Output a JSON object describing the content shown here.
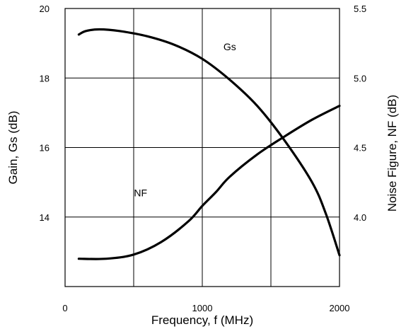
{
  "chart_data": {
    "type": "line",
    "title": "",
    "xlabel": "Frequency, f (MHz)",
    "ylabel_left": "Gain, Gs (dB)",
    "ylabel_right": "Noise Figure, NF (dB)",
    "xlim": [
      0,
      2000
    ],
    "ylim_left": [
      12,
      20
    ],
    "ylim_right": [
      3.5,
      5.5
    ],
    "grid": true,
    "x_ticks": [
      {
        "value": 0,
        "label": "0"
      },
      {
        "value": 1000,
        "label": "1000"
      },
      {
        "value": 2000,
        "label": "2000"
      }
    ],
    "y_left_ticks": [
      {
        "value": 20,
        "label": "20"
      },
      {
        "value": 18,
        "label": "18"
      },
      {
        "value": 16,
        "label": "16"
      },
      {
        "value": 14,
        "label": "14"
      }
    ],
    "y_right_ticks": [
      {
        "value": 5.5,
        "label": "5.5"
      },
      {
        "value": 5.0,
        "label": "5.0"
      },
      {
        "value": 4.5,
        "label": "4.5"
      },
      {
        "value": 4.0,
        "label": "4.0"
      }
    ],
    "series": [
      {
        "name": "Gs",
        "axis": "left",
        "color": "#000000",
        "x": [
          100,
          150,
          250,
          400,
          600,
          800,
          1000,
          1200,
          1400,
          1600,
          1800,
          1900,
          2000
        ],
        "y": [
          19.25,
          19.35,
          19.4,
          19.35,
          19.2,
          18.95,
          18.55,
          17.95,
          17.2,
          16.2,
          15.0,
          14.1,
          12.9
        ]
      },
      {
        "name": "NF",
        "axis": "right",
        "color": "#000000",
        "x": [
          100,
          300,
          500,
          700,
          900,
          1000,
          1100,
          1200,
          1400,
          1600,
          1800,
          2000
        ],
        "y": [
          3.7,
          3.7,
          3.73,
          3.82,
          3.97,
          4.08,
          4.18,
          4.29,
          4.45,
          4.58,
          4.7,
          4.8
        ]
      }
    ],
    "annotations": [
      {
        "text": "Gs",
        "x": 1200,
        "y_left": 18.8
      },
      {
        "text": "NF",
        "x": 550,
        "y_left": 14.6
      }
    ]
  }
}
